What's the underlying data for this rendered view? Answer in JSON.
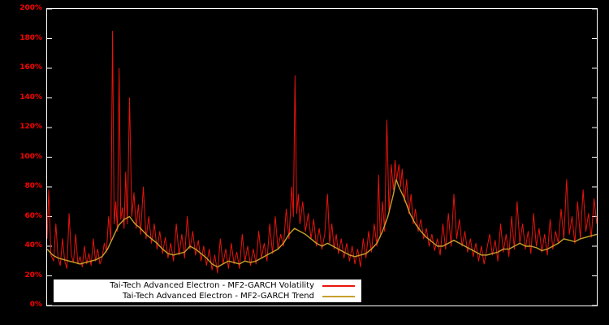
{
  "figure": {
    "background": "#000000",
    "plot_border_color": "#ffffff",
    "tick_label_color": "#ff0000"
  },
  "y_axis": {
    "tick_values": [
      0,
      20,
      40,
      60,
      80,
      100,
      120,
      140,
      160,
      180,
      200
    ],
    "tick_labels": [
      "0%",
      "20%",
      "40%",
      "60%",
      "80%",
      "100%",
      "120%",
      "140%",
      "160%",
      "180%",
      "200%"
    ]
  },
  "legend": {
    "background": "#ffffff",
    "entries": [
      {
        "label": "Tai-Tech Advanced Electron - MF2-GARCH Volatility",
        "color": "#e8140c"
      },
      {
        "label": "Tai-Tech Advanced Electron - MF2-GARCH Trend",
        "color": "#c8a02c"
      }
    ]
  },
  "chart_data": {
    "type": "line",
    "title": "",
    "xlabel": "",
    "ylabel": "",
    "x_range": [
      0,
      100
    ],
    "ylim": [
      0,
      200
    ],
    "grid": false,
    "legend_position": "bottom-center",
    "series": [
      {
        "name": "Tai-Tech Advanced Electron - MF2-GARCH Volatility",
        "color": "#e8140c",
        "width": 1,
        "points": [
          [
            0,
            45
          ],
          [
            0.3,
            78
          ],
          [
            0.7,
            34
          ],
          [
            1.2,
            30
          ],
          [
            1.6,
            55
          ],
          [
            2,
            32
          ],
          [
            2.4,
            27
          ],
          [
            2.8,
            45
          ],
          [
            3.2,
            30
          ],
          [
            3.6,
            25
          ],
          [
            4,
            62
          ],
          [
            4.4,
            34
          ],
          [
            4.8,
            29
          ],
          [
            5.2,
            48
          ],
          [
            5.6,
            28
          ],
          [
            6,
            33
          ],
          [
            6.4,
            26
          ],
          [
            6.8,
            40
          ],
          [
            7.2,
            28
          ],
          [
            7.6,
            35
          ],
          [
            8,
            27
          ],
          [
            8.4,
            45
          ],
          [
            8.8,
            30
          ],
          [
            9.2,
            38
          ],
          [
            9.6,
            28
          ],
          [
            10,
            32
          ],
          [
            10.4,
            42
          ],
          [
            10.8,
            36
          ],
          [
            11.2,
            60
          ],
          [
            11.6,
            44
          ],
          [
            11.9,
            185
          ],
          [
            12.2,
            55
          ],
          [
            12.5,
            70
          ],
          [
            12.8,
            50
          ],
          [
            13.1,
            160
          ],
          [
            13.4,
            58
          ],
          [
            13.7,
            66
          ],
          [
            14,
            52
          ],
          [
            14.3,
            90
          ],
          [
            14.6,
            55
          ],
          [
            15,
            140
          ],
          [
            15.4,
            60
          ],
          [
            15.8,
            76
          ],
          [
            16.2,
            52
          ],
          [
            16.6,
            68
          ],
          [
            17,
            48
          ],
          [
            17.5,
            80
          ],
          [
            18,
            45
          ],
          [
            18.5,
            60
          ],
          [
            19,
            42
          ],
          [
            19.5,
            55
          ],
          [
            20,
            38
          ],
          [
            20.5,
            50
          ],
          [
            21,
            35
          ],
          [
            21.5,
            46
          ],
          [
            22,
            32
          ],
          [
            22.5,
            42
          ],
          [
            23,
            30
          ],
          [
            23.5,
            55
          ],
          [
            24,
            34
          ],
          [
            24.5,
            48
          ],
          [
            25,
            32
          ],
          [
            25.5,
            60
          ],
          [
            26,
            38
          ],
          [
            26.5,
            50
          ],
          [
            27,
            34
          ],
          [
            27.5,
            44
          ],
          [
            28,
            30
          ],
          [
            28.5,
            40
          ],
          [
            29,
            27
          ],
          [
            29.5,
            38
          ],
          [
            30,
            24
          ],
          [
            30.5,
            34
          ],
          [
            31,
            22
          ],
          [
            31.5,
            45
          ],
          [
            32,
            28
          ],
          [
            32.5,
            38
          ],
          [
            33,
            25
          ],
          [
            33.5,
            42
          ],
          [
            34,
            28
          ],
          [
            34.5,
            36
          ],
          [
            35,
            25
          ],
          [
            35.5,
            48
          ],
          [
            36,
            30
          ],
          [
            36.5,
            40
          ],
          [
            37,
            27
          ],
          [
            37.5,
            38
          ],
          [
            38,
            28
          ],
          [
            38.5,
            50
          ],
          [
            39,
            32
          ],
          [
            39.5,
            42
          ],
          [
            40,
            30
          ],
          [
            40.5,
            55
          ],
          [
            41,
            35
          ],
          [
            41.5,
            60
          ],
          [
            42,
            38
          ],
          [
            42.5,
            48
          ],
          [
            43,
            40
          ],
          [
            43.5,
            65
          ],
          [
            44,
            45
          ],
          [
            44.5,
            80
          ],
          [
            44.8,
            60
          ],
          [
            45.1,
            155
          ],
          [
            45.4,
            62
          ],
          [
            45.7,
            75
          ],
          [
            46,
            55
          ],
          [
            46.5,
            70
          ],
          [
            47,
            50
          ],
          [
            47.5,
            62
          ],
          [
            48,
            45
          ],
          [
            48.5,
            58
          ],
          [
            49,
            40
          ],
          [
            49.5,
            52
          ],
          [
            50,
            38
          ],
          [
            50.5,
            48
          ],
          [
            51,
            75
          ],
          [
            51.4,
            42
          ],
          [
            51.8,
            55
          ],
          [
            52.2,
            38
          ],
          [
            52.6,
            48
          ],
          [
            53,
            35
          ],
          [
            53.5,
            45
          ],
          [
            54,
            32
          ],
          [
            54.5,
            42
          ],
          [
            55,
            30
          ],
          [
            55.5,
            40
          ],
          [
            56,
            28
          ],
          [
            56.5,
            38
          ],
          [
            57,
            26
          ],
          [
            57.5,
            45
          ],
          [
            58,
            32
          ],
          [
            58.5,
            50
          ],
          [
            59,
            36
          ],
          [
            59.5,
            55
          ],
          [
            60,
            40
          ],
          [
            60.3,
            88
          ],
          [
            60.6,
            46
          ],
          [
            61,
            70
          ],
          [
            61.4,
            50
          ],
          [
            61.8,
            125
          ],
          [
            62.2,
            62
          ],
          [
            62.6,
            95
          ],
          [
            63,
            78
          ],
          [
            63.3,
            98
          ],
          [
            63.6,
            85
          ],
          [
            64,
            95
          ],
          [
            64.3,
            80
          ],
          [
            64.6,
            92
          ],
          [
            65,
            70
          ],
          [
            65.4,
            85
          ],
          [
            65.8,
            62
          ],
          [
            66.2,
            75
          ],
          [
            66.6,
            55
          ],
          [
            67,
            65
          ],
          [
            67.5,
            50
          ],
          [
            68,
            58
          ],
          [
            68.5,
            45
          ],
          [
            69,
            52
          ],
          [
            69.5,
            40
          ],
          [
            70,
            48
          ],
          [
            70.5,
            37
          ],
          [
            71,
            45
          ],
          [
            71.5,
            34
          ],
          [
            72,
            55
          ],
          [
            72.5,
            38
          ],
          [
            73,
            62
          ],
          [
            73.5,
            40
          ],
          [
            74,
            75
          ],
          [
            74.5,
            45
          ],
          [
            75,
            58
          ],
          [
            75.5,
            40
          ],
          [
            76,
            50
          ],
          [
            76.5,
            36
          ],
          [
            77,
            45
          ],
          [
            77.5,
            33
          ],
          [
            78,
            42
          ],
          [
            78.5,
            30
          ],
          [
            79,
            40
          ],
          [
            79.5,
            28
          ],
          [
            80,
            38
          ],
          [
            80.5,
            48
          ],
          [
            81,
            34
          ],
          [
            81.5,
            44
          ],
          [
            82,
            30
          ],
          [
            82.5,
            55
          ],
          [
            83,
            36
          ],
          [
            83.5,
            48
          ],
          [
            84,
            33
          ],
          [
            84.5,
            60
          ],
          [
            85,
            38
          ],
          [
            85.5,
            70
          ],
          [
            86,
            42
          ],
          [
            86.5,
            55
          ],
          [
            87,
            38
          ],
          [
            87.5,
            50
          ],
          [
            88,
            35
          ],
          [
            88.5,
            62
          ],
          [
            89,
            40
          ],
          [
            89.5,
            52
          ],
          [
            90,
            36
          ],
          [
            90.5,
            48
          ],
          [
            91,
            34
          ],
          [
            91.5,
            58
          ],
          [
            92,
            38
          ],
          [
            92.5,
            50
          ],
          [
            93,
            42
          ],
          [
            93.5,
            65
          ],
          [
            94,
            45
          ],
          [
            94.5,
            85
          ],
          [
            95,
            48
          ],
          [
            95.5,
            60
          ],
          [
            96,
            42
          ],
          [
            96.5,
            70
          ],
          [
            97,
            45
          ],
          [
            97.5,
            78
          ],
          [
            98,
            50
          ],
          [
            98.5,
            62
          ],
          [
            99,
            46
          ],
          [
            99.5,
            72
          ],
          [
            100,
            55
          ]
        ]
      },
      {
        "name": "Tai-Tech Advanced Electron - MF2-GARCH Trend",
        "color": "#c8a02c",
        "width": 1.4,
        "points": [
          [
            0,
            38
          ],
          [
            1,
            34
          ],
          [
            2,
            32
          ],
          [
            3,
            31
          ],
          [
            4,
            30
          ],
          [
            5,
            29
          ],
          [
            6,
            28
          ],
          [
            7,
            29
          ],
          [
            8,
            30
          ],
          [
            9,
            31
          ],
          [
            10,
            33
          ],
          [
            11,
            38
          ],
          [
            12,
            46
          ],
          [
            13,
            54
          ],
          [
            14,
            58
          ],
          [
            15,
            60
          ],
          [
            16,
            55
          ],
          [
            17,
            52
          ],
          [
            18,
            48
          ],
          [
            19,
            45
          ],
          [
            20,
            42
          ],
          [
            21,
            38
          ],
          [
            22,
            35
          ],
          [
            23,
            34
          ],
          [
            24,
            35
          ],
          [
            25,
            36
          ],
          [
            26,
            40
          ],
          [
            27,
            38
          ],
          [
            28,
            35
          ],
          [
            29,
            32
          ],
          [
            30,
            28
          ],
          [
            31,
            26
          ],
          [
            32,
            28
          ],
          [
            33,
            30
          ],
          [
            34,
            29
          ],
          [
            35,
            28
          ],
          [
            36,
            30
          ],
          [
            37,
            29
          ],
          [
            38,
            30
          ],
          [
            39,
            32
          ],
          [
            40,
            34
          ],
          [
            41,
            36
          ],
          [
            42,
            38
          ],
          [
            43,
            42
          ],
          [
            44,
            48
          ],
          [
            45,
            52
          ],
          [
            46,
            50
          ],
          [
            47,
            48
          ],
          [
            48,
            45
          ],
          [
            49,
            42
          ],
          [
            50,
            40
          ],
          [
            51,
            42
          ],
          [
            52,
            40
          ],
          [
            53,
            38
          ],
          [
            54,
            36
          ],
          [
            55,
            34
          ],
          [
            56,
            33
          ],
          [
            57,
            34
          ],
          [
            58,
            35
          ],
          [
            59,
            38
          ],
          [
            60,
            42
          ],
          [
            61,
            50
          ],
          [
            62,
            60
          ],
          [
            63,
            75
          ],
          [
            63.5,
            85
          ],
          [
            64,
            80
          ],
          [
            65,
            72
          ],
          [
            66,
            62
          ],
          [
            67,
            55
          ],
          [
            68,
            50
          ],
          [
            69,
            46
          ],
          [
            70,
            43
          ],
          [
            71,
            40
          ],
          [
            72,
            40
          ],
          [
            73,
            42
          ],
          [
            74,
            44
          ],
          [
            75,
            42
          ],
          [
            76,
            40
          ],
          [
            77,
            38
          ],
          [
            78,
            36
          ],
          [
            79,
            34
          ],
          [
            80,
            34
          ],
          [
            81,
            35
          ],
          [
            82,
            36
          ],
          [
            83,
            38
          ],
          [
            84,
            38
          ],
          [
            85,
            40
          ],
          [
            86,
            42
          ],
          [
            87,
            40
          ],
          [
            88,
            40
          ],
          [
            89,
            39
          ],
          [
            90,
            37
          ],
          [
            91,
            38
          ],
          [
            92,
            40
          ],
          [
            93,
            42
          ],
          [
            94,
            45
          ],
          [
            95,
            44
          ],
          [
            96,
            43
          ],
          [
            97,
            45
          ],
          [
            98,
            46
          ],
          [
            99,
            47
          ],
          [
            100,
            48
          ]
        ]
      }
    ]
  }
}
